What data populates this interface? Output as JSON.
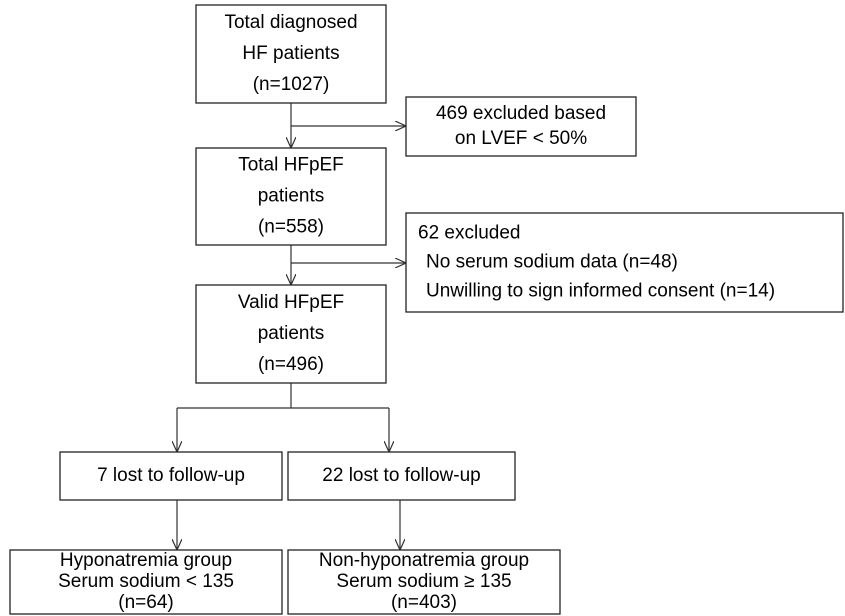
{
  "nodes": [
    {
      "id": "total",
      "lines": [
        "Total diagnosed",
        "HF patients",
        "(n=1027)"
      ]
    },
    {
      "id": "excl1",
      "lines": [
        "469 excluded based",
        "on LVEF < 50%"
      ]
    },
    {
      "id": "hfpef",
      "lines": [
        "Total HFpEF",
        "patients",
        "(n=558)"
      ]
    },
    {
      "id": "excl2",
      "lines": [
        "62 excluded",
        "No serum sodium data (n=48)",
        "Unwilling to sign informed consent (n=14)"
      ]
    },
    {
      "id": "valid",
      "lines": [
        "Valid HFpEF",
        "patients",
        "(n=496)"
      ]
    },
    {
      "id": "lost1",
      "lines": [
        "7 lost to follow-up"
      ]
    },
    {
      "id": "lost2",
      "lines": [
        "22 lost to follow-up"
      ]
    },
    {
      "id": "hypo",
      "lines": [
        "Hyponatremia group",
        "Serum sodium < 135",
        "(n=64)"
      ]
    },
    {
      "id": "nonhypo",
      "lines": [
        "Non-hyponatremia group",
        "Serum sodium ≥ 135",
        "(n=403)"
      ]
    }
  ]
}
